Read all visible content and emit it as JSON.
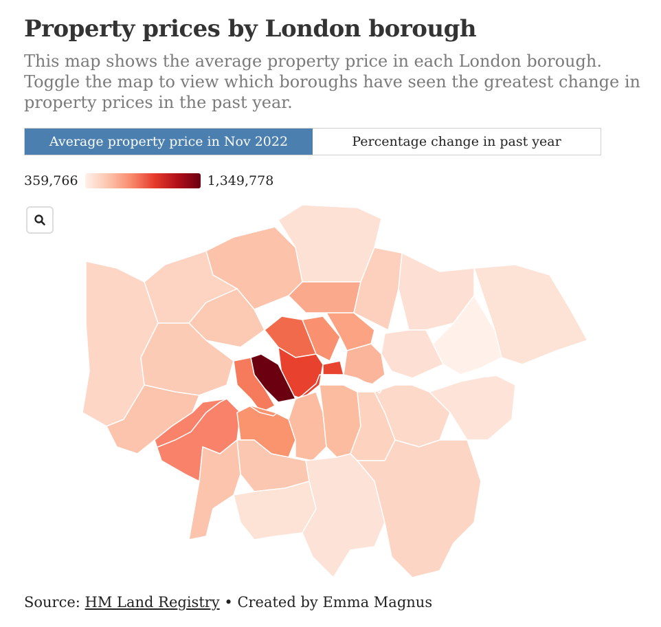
{
  "header": {
    "title": "Property prices by London borough",
    "subtitle": "This map shows the average property price in each London borough. Toggle the map to view which boroughs have seen the greatest change in property prices in the past year."
  },
  "toggle": {
    "options": [
      {
        "label": "Average property price in Nov 2022",
        "active": true
      },
      {
        "label": "Percentage change in past year",
        "active": false
      }
    ],
    "active_color": "#4a7fb0"
  },
  "legend": {
    "min_label": "359,766",
    "max_label": "1,349,778",
    "min_color": "#fff1ea",
    "max_color": "#6b0010"
  },
  "controls": {
    "zoom_icon": "search-icon"
  },
  "footer": {
    "source_prefix": "Source:",
    "source_link": "HM Land Registry",
    "separator": "•",
    "credit": "Created by Emma Magnus"
  }
}
